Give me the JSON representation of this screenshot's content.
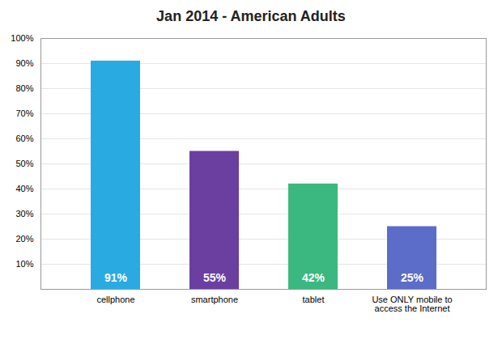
{
  "chart_data": {
    "type": "bar",
    "title": "Jan 2014 - American Adults",
    "categories": [
      "cellphone",
      "smartphone",
      "tablet",
      "Use ONLY mobile to\naccess the Internet"
    ],
    "values": [
      91,
      55,
      42,
      25
    ],
    "value_labels": [
      "91%",
      "55%",
      "42%",
      "25%"
    ],
    "colors": [
      "#29ABE2",
      "#6B3FA0",
      "#3BB87F",
      "#5B6DC8"
    ],
    "ylim": [
      0,
      100
    ],
    "yticks": [
      {
        "value": 10,
        "label": "10%"
      },
      {
        "value": 20,
        "label": "20%"
      },
      {
        "value": 30,
        "label": "30%"
      },
      {
        "value": 40,
        "label": "40%"
      },
      {
        "value": 50,
        "label": "50%"
      },
      {
        "value": 60,
        "label": "60%"
      },
      {
        "value": 70,
        "label": "70%"
      },
      {
        "value": 80,
        "label": "80%"
      },
      {
        "value": 90,
        "label": "90%"
      },
      {
        "value": 100,
        "label": "100%"
      }
    ],
    "grid": true,
    "data_labels": true
  }
}
